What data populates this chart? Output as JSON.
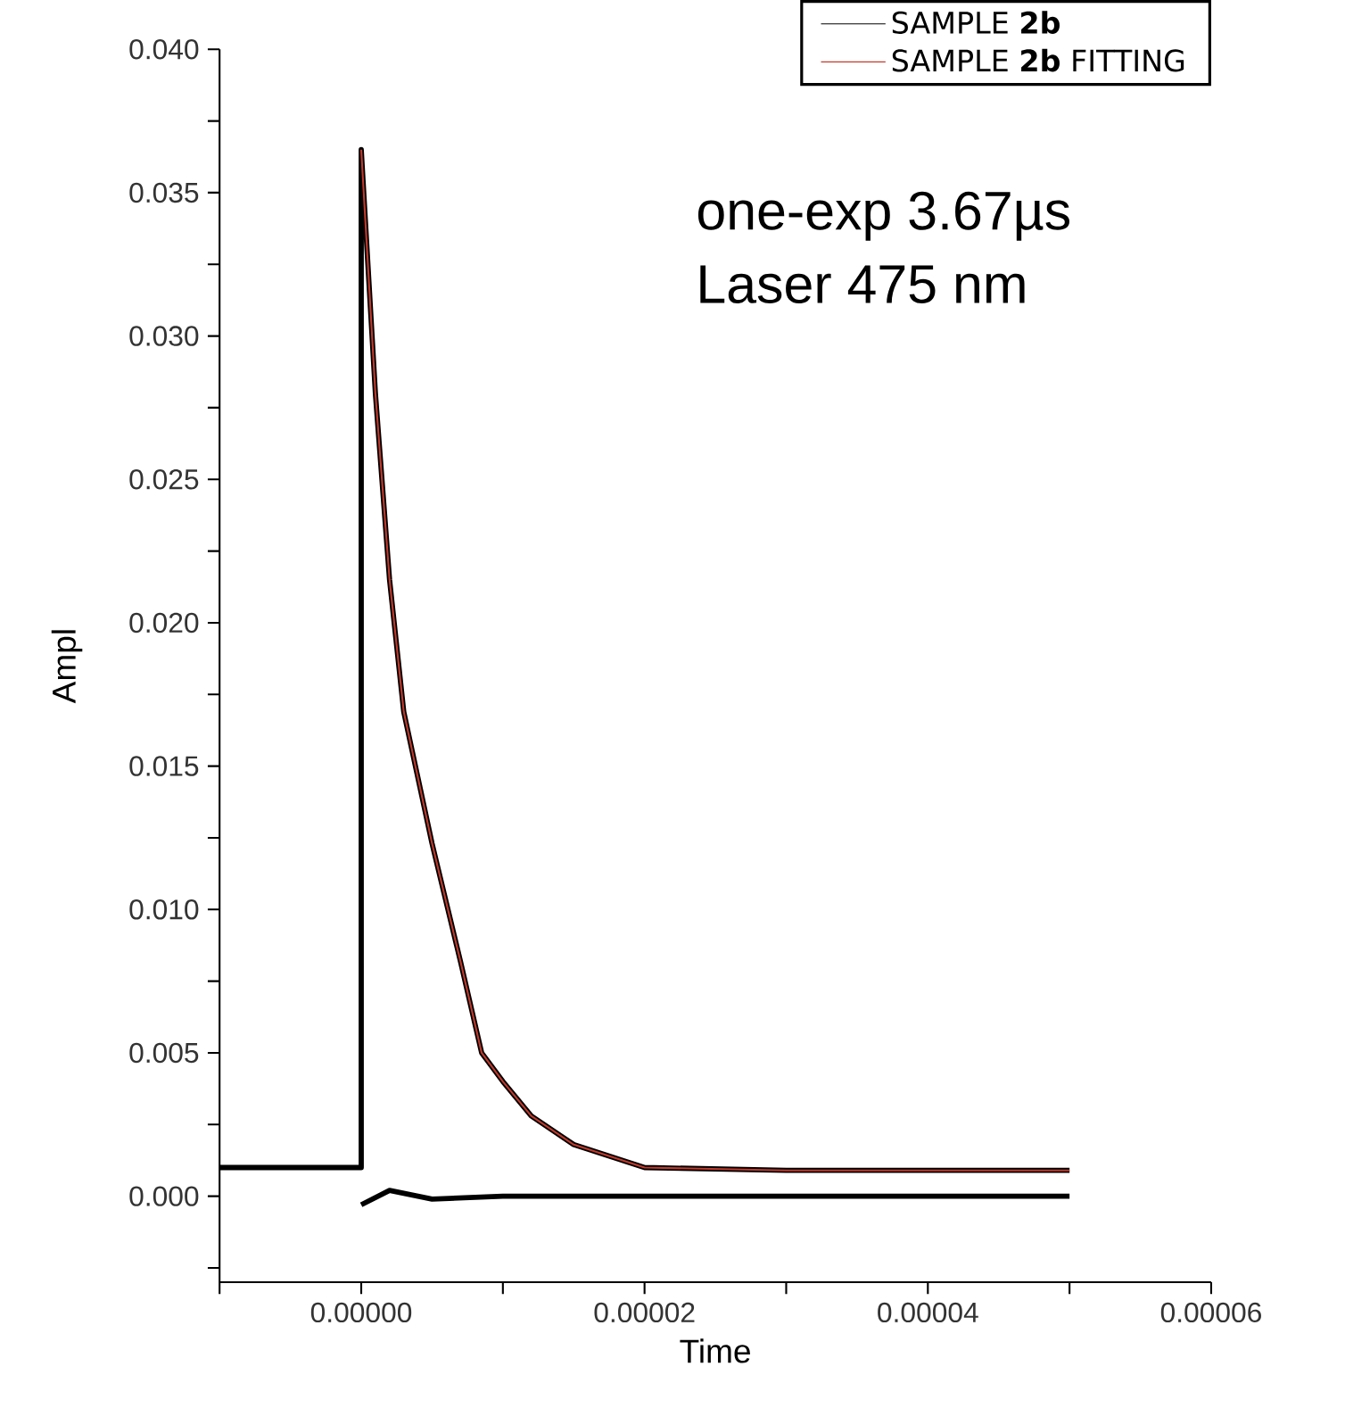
{
  "chart_data": {
    "type": "line",
    "xlabel": "Time",
    "ylabel": "Ampl",
    "annotations": [
      "one-exp 3.67µs",
      "Laser 475 nm"
    ],
    "xlim": [
      -1e-05,
      6e-05
    ],
    "ylim": [
      -0.003,
      0.04
    ],
    "xticks": [
      {
        "value": -1e-05,
        "label": null
      },
      {
        "value": 0,
        "label": "0.00000"
      },
      {
        "value": 1e-05,
        "label": null
      },
      {
        "value": 2e-05,
        "label": "0.00002"
      },
      {
        "value": 3e-05,
        "label": null
      },
      {
        "value": 4e-05,
        "label": "0.00004"
      },
      {
        "value": 5e-05,
        "label": null
      },
      {
        "value": 6e-05,
        "label": "0.00006"
      }
    ],
    "yticks": [
      {
        "value": -0.0025,
        "label": null
      },
      {
        "value": 0,
        "label": "0.000"
      },
      {
        "value": 0.0025,
        "label": null
      },
      {
        "value": 0.005,
        "label": "0.005"
      },
      {
        "value": 0.0075,
        "label": null
      },
      {
        "value": 0.01,
        "label": "0.010"
      },
      {
        "value": 0.0125,
        "label": null
      },
      {
        "value": 0.015,
        "label": "0.015"
      },
      {
        "value": 0.0175,
        "label": null
      },
      {
        "value": 0.02,
        "label": "0.020"
      },
      {
        "value": 0.0225,
        "label": null
      },
      {
        "value": 0.025,
        "label": "0.025"
      },
      {
        "value": 0.0275,
        "label": null
      },
      {
        "value": 0.03,
        "label": "0.030"
      },
      {
        "value": 0.0325,
        "label": null
      },
      {
        "value": 0.035,
        "label": "0.035"
      },
      {
        "value": 0.0375,
        "label": null
      },
      {
        "value": 0.04,
        "label": "0.040"
      }
    ],
    "grid": false,
    "legend": "top right",
    "marker": "none",
    "line_style": "solid",
    "series": [
      {
        "name": "SAMPLE **2b**",
        "color": "#000000",
        "x": [
          -1e-05,
          -5e-06,
          0,
          0,
          1e-06,
          2e-06,
          3e-06,
          5e-06,
          7e-06,
          8.5e-06,
          1e-05,
          1.2e-05,
          1.5e-05,
          2e-05,
          3e-05,
          4e-05,
          5e-05
        ],
        "values": [
          0.001,
          0.001,
          0.001,
          0.0365,
          0.028,
          0.0215,
          0.0169,
          0.0123,
          0.0082,
          0.005,
          0.004,
          0.0028,
          0.0018,
          0.001,
          0.0009,
          0.0009,
          0.0009
        ]
      },
      {
        "name": "SAMPLE **2b** FITTING",
        "color": "#c0392b",
        "x": [
          0,
          1e-06,
          2e-06,
          3e-06,
          5e-06,
          7e-06,
          8.5e-06,
          1e-05,
          1.2e-05,
          1.5e-05,
          2e-05,
          3e-05,
          4e-05,
          5e-05
        ],
        "values": [
          0.0365,
          0.028,
          0.0215,
          0.0169,
          0.0123,
          0.0082,
          0.005,
          0.004,
          0.0028,
          0.0018,
          0.001,
          0.0009,
          0.0009,
          0.0009
        ]
      },
      {
        "color": "#000000",
        "x": [
          0,
          2e-06,
          5e-06,
          1e-05,
          2e-05,
          3e-05,
          4e-05,
          5e-05
        ],
        "values": [
          -0.0003,
          0.0002,
          -0.0001,
          0,
          0,
          0,
          0,
          0
        ]
      }
    ]
  }
}
